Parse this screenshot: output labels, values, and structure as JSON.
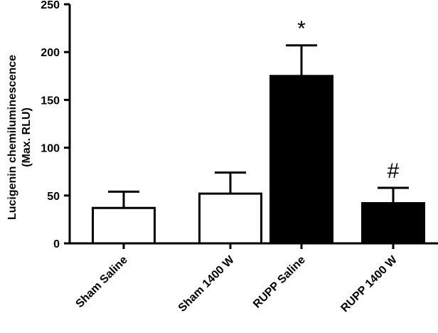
{
  "chart_data": {
    "type": "bar",
    "categories": [
      "Sham Saline",
      "Sham 1400 W",
      "RUPP Saline",
      "RUPP 1400 W"
    ],
    "values": [
      37,
      52,
      175,
      42
    ],
    "errors": [
      17,
      22,
      32,
      16
    ],
    "bar_fills": [
      "#ffffff",
      "#ffffff",
      "#000000",
      "#000000"
    ],
    "annotations": [
      "",
      "",
      "*",
      "#"
    ],
    "ylabel_line1": "Lucigenin chemiluminescence",
    "ylabel_line2": "(Max. RLU)",
    "xlabel": "",
    "title": "",
    "ylim": [
      0,
      250
    ],
    "yticks": [
      0,
      50,
      100,
      150,
      200,
      250
    ],
    "grid": false
  }
}
